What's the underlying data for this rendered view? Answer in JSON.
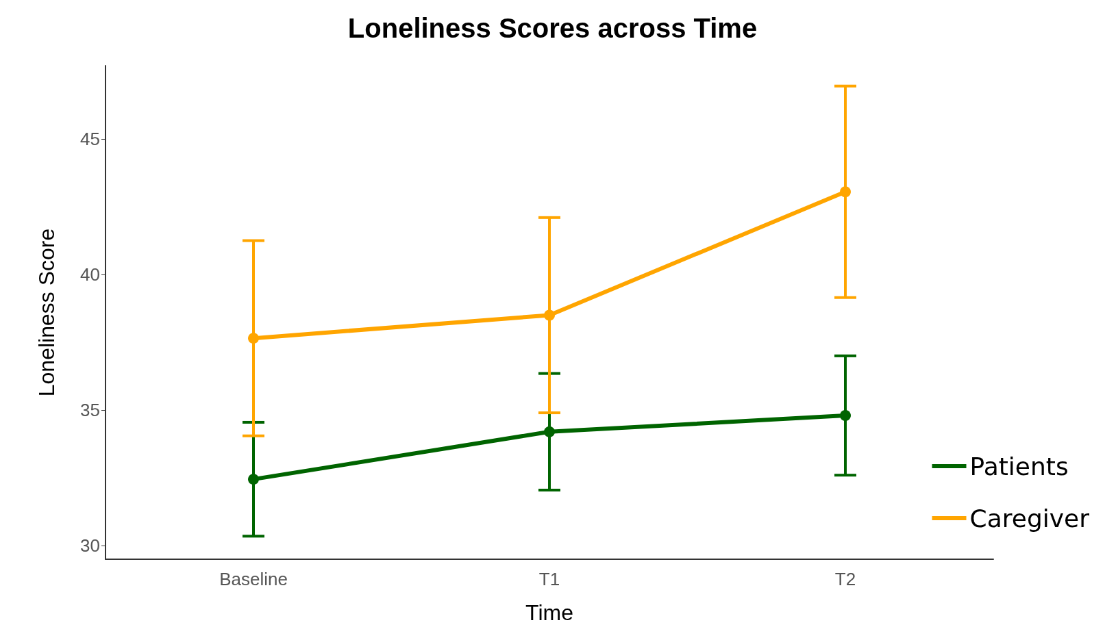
{
  "chart_data": {
    "type": "line",
    "title": "Loneliness Scores across Time",
    "xlabel": "Time",
    "ylabel": "Loneliness Score",
    "categories": [
      "Baseline",
      "T1",
      "T2"
    ],
    "series": [
      {
        "name": "Patients",
        "color": "#006400",
        "values": [
          32.45,
          34.2,
          34.8
        ],
        "errors": [
          2.1,
          2.15,
          2.2
        ]
      },
      {
        "name": "Caregiver",
        "color": "#ffa500",
        "values": [
          37.65,
          38.5,
          43.05
        ],
        "errors": [
          3.6,
          3.6,
          3.9
        ]
      }
    ],
    "ylim": [
      29.5,
      47.7
    ],
    "yticks": [
      30,
      35,
      40,
      45
    ],
    "grid": false,
    "legend": "right",
    "marker": "circle",
    "line_style": "solid"
  }
}
